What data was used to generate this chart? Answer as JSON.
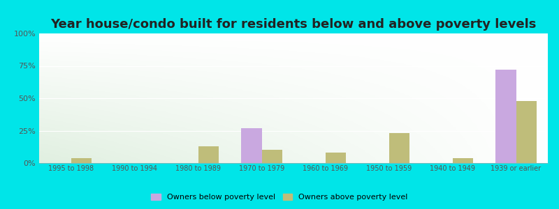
{
  "title": "Year house/condo built for residents below and above poverty levels",
  "categories": [
    "1995 to 1998",
    "1990 to 1994",
    "1980 to 1989",
    "1970 to 1979",
    "1960 to 1969",
    "1950 to 1959",
    "1940 to 1949",
    "1939 or earlier"
  ],
  "below_poverty": [
    0,
    0,
    0,
    27,
    0,
    0,
    0,
    72
  ],
  "above_poverty": [
    4,
    0,
    13,
    10,
    8,
    23,
    4,
    48
  ],
  "below_color": "#c9a8e0",
  "above_color": "#bfbd7a",
  "ylabel_ticks": [
    0,
    25,
    50,
    75,
    100
  ],
  "ylabel_labels": [
    "0%",
    "25%",
    "50%",
    "75%",
    "100%"
  ],
  "ylim": [
    0,
    100
  ],
  "legend_below": "Owners below poverty level",
  "legend_above": "Owners above poverty level",
  "outer_bg": "#00e5e8",
  "title_fontsize": 13,
  "bar_width": 0.32,
  "tick_fontsize": 7,
  "ytick_fontsize": 8
}
